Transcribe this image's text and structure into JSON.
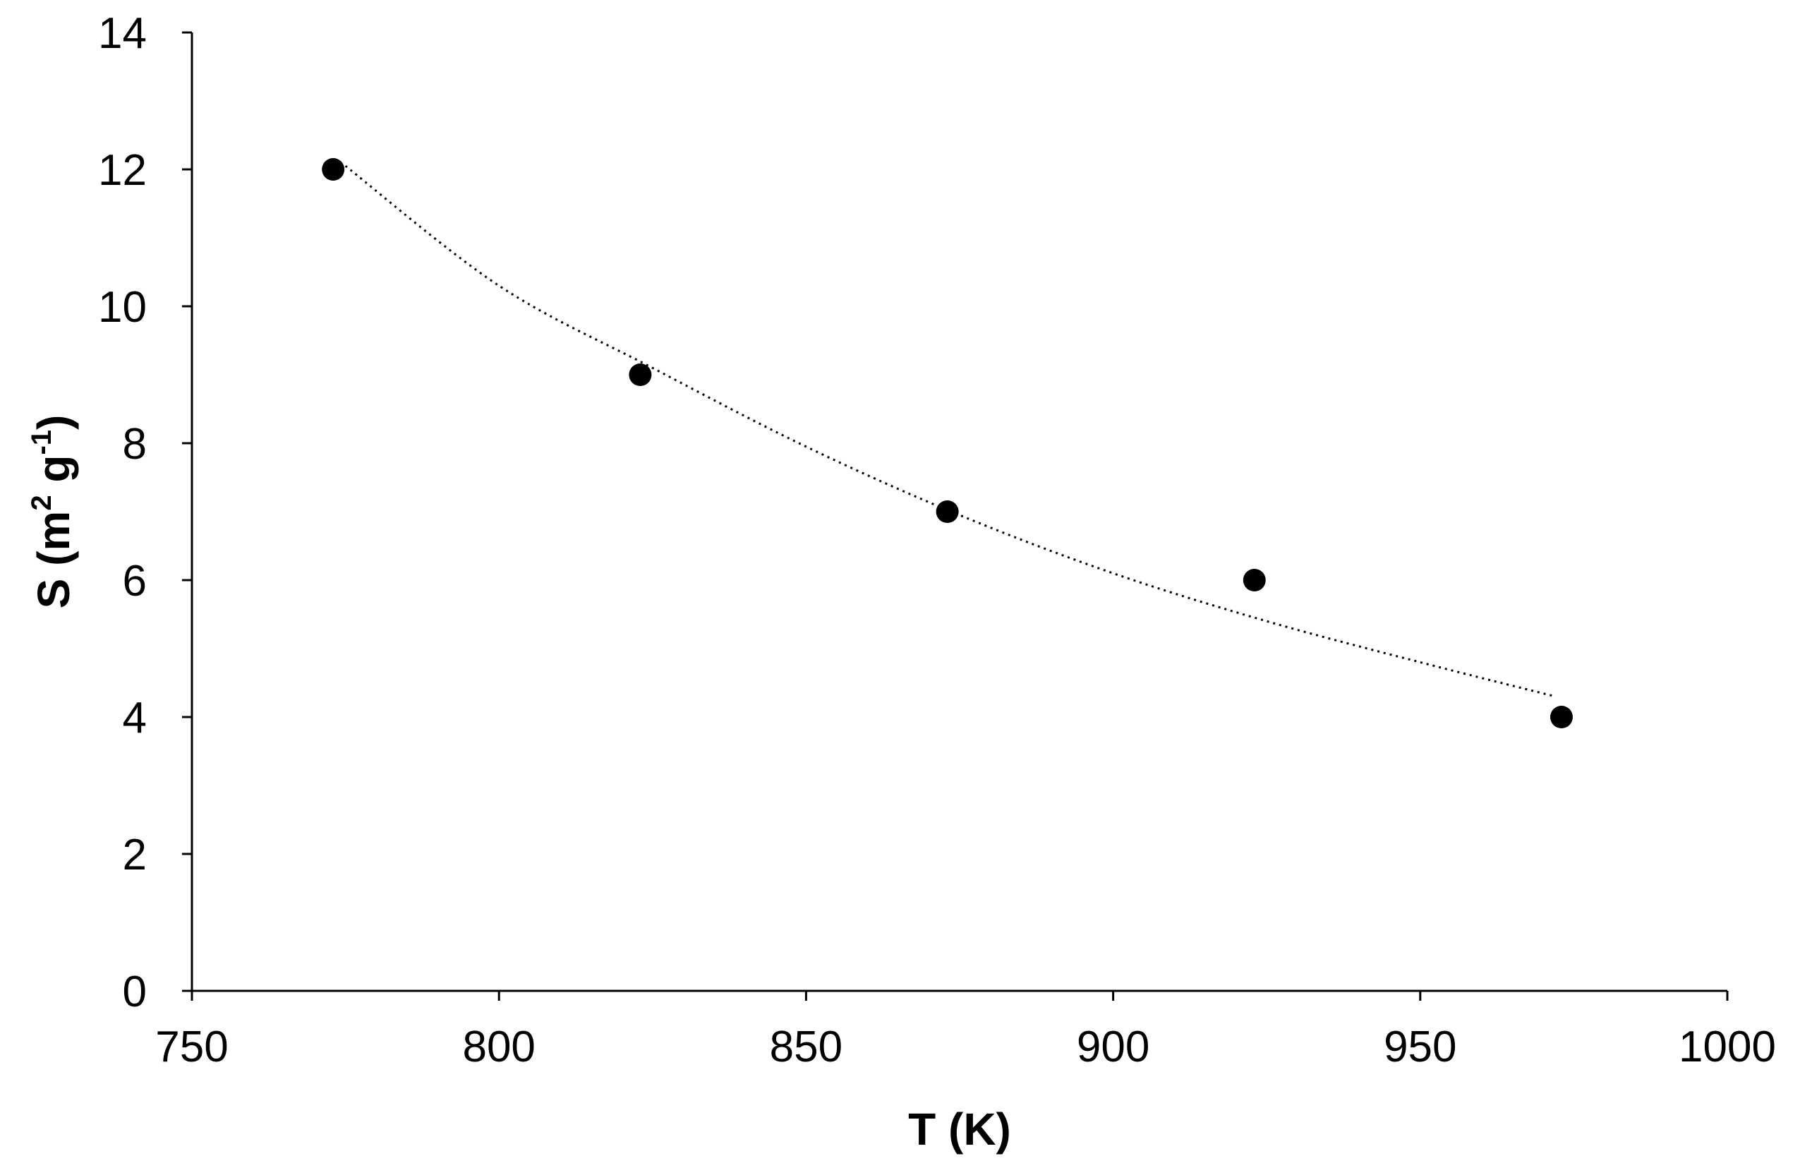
{
  "chart_data": {
    "type": "scatter",
    "xlabel": "T (K)",
    "ylabel": {
      "prefix": "S (m",
      "sup1": "2",
      "mid": " g",
      "sup2": "-1",
      "suffix": ")"
    },
    "xlim": [
      750,
      1000
    ],
    "ylim": [
      0,
      14
    ],
    "xticks": [
      750,
      800,
      850,
      900,
      950,
      1000
    ],
    "yticks": [
      0,
      2,
      4,
      6,
      8,
      10,
      12,
      14
    ],
    "grid": false,
    "legend": "none",
    "series": [
      {
        "points": [
          {
            "x": 773,
            "y": 12
          },
          {
            "x": 823,
            "y": 9
          },
          {
            "x": 873,
            "y": 7
          },
          {
            "x": 923,
            "y": 6
          },
          {
            "x": 973,
            "y": 4
          }
        ],
        "marker": "filled-circle",
        "color": "#000000"
      }
    ],
    "trendline": {
      "style": "dotted",
      "color": "#000000",
      "points": [
        {
          "x": 775,
          "y": 12.05
        },
        {
          "x": 800,
          "y": 10.3
        },
        {
          "x": 825,
          "y": 9.1
        },
        {
          "x": 850,
          "y": 7.95
        },
        {
          "x": 875,
          "y": 6.95
        },
        {
          "x": 900,
          "y": 6.1
        },
        {
          "x": 925,
          "y": 5.4
        },
        {
          "x": 950,
          "y": 4.8
        },
        {
          "x": 972,
          "y": 4.3
        }
      ]
    }
  }
}
